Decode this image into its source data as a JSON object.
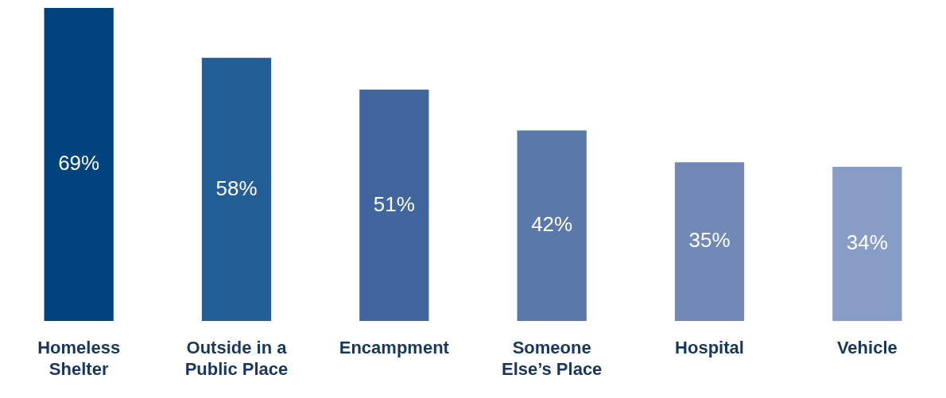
{
  "chart_data": {
    "type": "bar",
    "categories": [
      "Homeless Shelter",
      "Outside in a Public Place",
      "Encampment",
      "Someone Else’s Place",
      "Hospital",
      "Vehicle"
    ],
    "values": [
      69,
      58,
      51,
      42,
      35,
      34
    ],
    "colors": [
      "#00437f",
      "#245e96",
      "#41669d",
      "#5a78aa",
      "#7289b8",
      "#879dc6"
    ],
    "value_labels": [
      "69%",
      "58%",
      "51%",
      "42%",
      "35%",
      "34%"
    ],
    "grid": false,
    "legend": false
  }
}
